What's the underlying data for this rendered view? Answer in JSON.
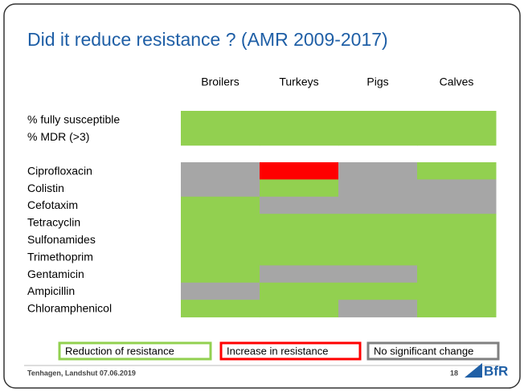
{
  "title": "Did it reduce resistance ? (AMR 2009-2017)",
  "columns": [
    "Broilers",
    "Turkeys",
    "Pigs",
    "Calves"
  ],
  "groups": [
    {
      "rows": [
        {
          "label": "% fully susceptible",
          "cells": [
            "#92d050",
            "#92d050",
            "#92d050",
            "#92d050"
          ]
        },
        {
          "label": "% MDR (>3)",
          "cells": [
            "#92d050",
            "#92d050",
            "#92d050",
            "#92d050"
          ]
        }
      ]
    },
    {
      "rows": [
        {
          "label": "Ciprofloxacin",
          "cells": [
            "#a6a6a6",
            "#ff0000",
            "#a6a6a6",
            "#92d050"
          ]
        },
        {
          "label": "Colistin",
          "cells": [
            "#a6a6a6",
            "#92d050",
            "#a6a6a6",
            "#a6a6a6"
          ]
        },
        {
          "label": "Cefotaxim",
          "cells": [
            "#92d050",
            "#a6a6a6",
            "#a6a6a6",
            "#a6a6a6"
          ]
        },
        {
          "label": "Tetracyclin",
          "cells": [
            "#92d050",
            "#92d050",
            "#92d050",
            "#92d050"
          ]
        },
        {
          "label": "Sulfonamides",
          "cells": [
            "#92d050",
            "#92d050",
            "#92d050",
            "#92d050"
          ]
        },
        {
          "label": "Trimethoprim",
          "cells": [
            "#92d050",
            "#92d050",
            "#92d050",
            "#92d050"
          ]
        },
        {
          "label": "Gentamicin",
          "cells": [
            "#92d050",
            "#a6a6a6",
            "#a6a6a6",
            "#92d050"
          ]
        },
        {
          "label": "Ampicillin",
          "cells": [
            "#a6a6a6",
            "#92d050",
            "#92d050",
            "#92d050"
          ]
        },
        {
          "label": "Chloramphenicol",
          "cells": [
            "#92d050",
            "#92d050",
            "#a6a6a6",
            "#92d050"
          ]
        }
      ]
    }
  ],
  "legend": [
    {
      "label": "Reduction of resistance",
      "color": "#92d050"
    },
    {
      "label": "Increase in resistance",
      "color": "#ff0000"
    },
    {
      "label": "No significant change",
      "color": "#808080"
    }
  ],
  "footer": {
    "text": "Tenhagen, Landshut 07.06.2019",
    "page": "18",
    "logo": "BfR"
  }
}
